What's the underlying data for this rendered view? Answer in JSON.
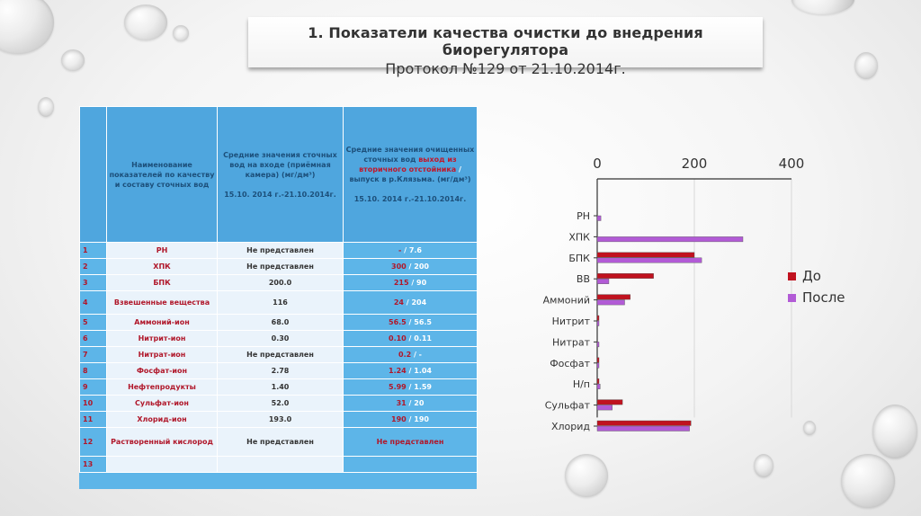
{
  "title": {
    "line1": "1. Показатели качества очистки до внедрения биорегулятора",
    "line2": "Протокол №129 от 21.10.2014г."
  },
  "table": {
    "headers": {
      "name": "Наименование показателей по качеству и  составу сточных вод",
      "input_a": "Средние значения сточных вод на входе (приёмная камера) (мг/дм³)",
      "input_b": "15.10. 2014 г.-21.10.2014г.",
      "output_a": "Средние значения очищенных сточных вод",
      "output_red": "выход из вторичного отстойника",
      "output_sep": " / ",
      "output_white": "выпуск в р.Клязьма.",
      "output_b": "(мг/дм³)",
      "output_c": "15.10. 2014 г.-21.10.2014г."
    },
    "rows": [
      {
        "n": "1",
        "name": "РН",
        "input": "Не представлен",
        "before": "-",
        "after": "7.6"
      },
      {
        "n": "2",
        "name": "ХПК",
        "input": "Не представлен",
        "before": "300",
        "after": "200"
      },
      {
        "n": "3",
        "name": "БПК",
        "input": "200.0",
        "before": "215",
        "after": "90"
      },
      {
        "n": "4",
        "name": "Взвешенные вещества",
        "input": "116",
        "before": "24",
        "after": "204"
      },
      {
        "n": "5",
        "name": "Аммоний-ион",
        "input": "68.0",
        "before": "56.5",
        "after": "56.5"
      },
      {
        "n": "6",
        "name": "Нитрит-ион",
        "input": "0.30",
        "before": "0.10",
        "after": "0.11"
      },
      {
        "n": "7",
        "name": "Нитрат-ион",
        "input": "Не представлен",
        "before": "0.2",
        "after": "-"
      },
      {
        "n": "8",
        "name": "Фосфат-ион",
        "input": "2.78",
        "before": "1.24",
        "after": "1.04"
      },
      {
        "n": "9",
        "name": "Нефтепродукты",
        "input": "1.40",
        "before": "5.99",
        "after": "1.59"
      },
      {
        "n": "10",
        "name": "Сульфат-ион",
        "input": "52.0",
        "before": "31",
        "after": "20"
      },
      {
        "n": "11",
        "name": "Хлорид-ион",
        "input": "193.0",
        "before": "190",
        "after": "190"
      },
      {
        "n": "12",
        "name": "Растворенный кислород",
        "input": "Не представлен",
        "output_single": "Не представлен"
      },
      {
        "n": "13",
        "name": "",
        "input": "",
        "output_single": ""
      }
    ]
  },
  "chart_data": {
    "type": "bar",
    "orientation": "horizontal",
    "categories": [
      "РН",
      "ХПК",
      "БПК",
      "ВВ",
      "Аммоний",
      "Нитрит",
      "Нитрат",
      "Фосфат",
      "Н/п",
      "Сульфат",
      "Хлорид"
    ],
    "series": [
      {
        "name": "До",
        "color": "#c0121f",
        "values": [
          0,
          0,
          200,
          116,
          68,
          0.3,
          0,
          2.78,
          1.4,
          52,
          193
        ]
      },
      {
        "name": "После",
        "color": "#b25bd6",
        "values": [
          7.6,
          300,
          215,
          24,
          56.5,
          0.11,
          0.2,
          1.04,
          5.99,
          31,
          190
        ]
      }
    ],
    "x_ticks": [
      "0",
      "200",
      "400"
    ],
    "xlim": [
      0,
      400
    ],
    "x_axis_position": "top",
    "gridlines": true,
    "legend": "right"
  }
}
